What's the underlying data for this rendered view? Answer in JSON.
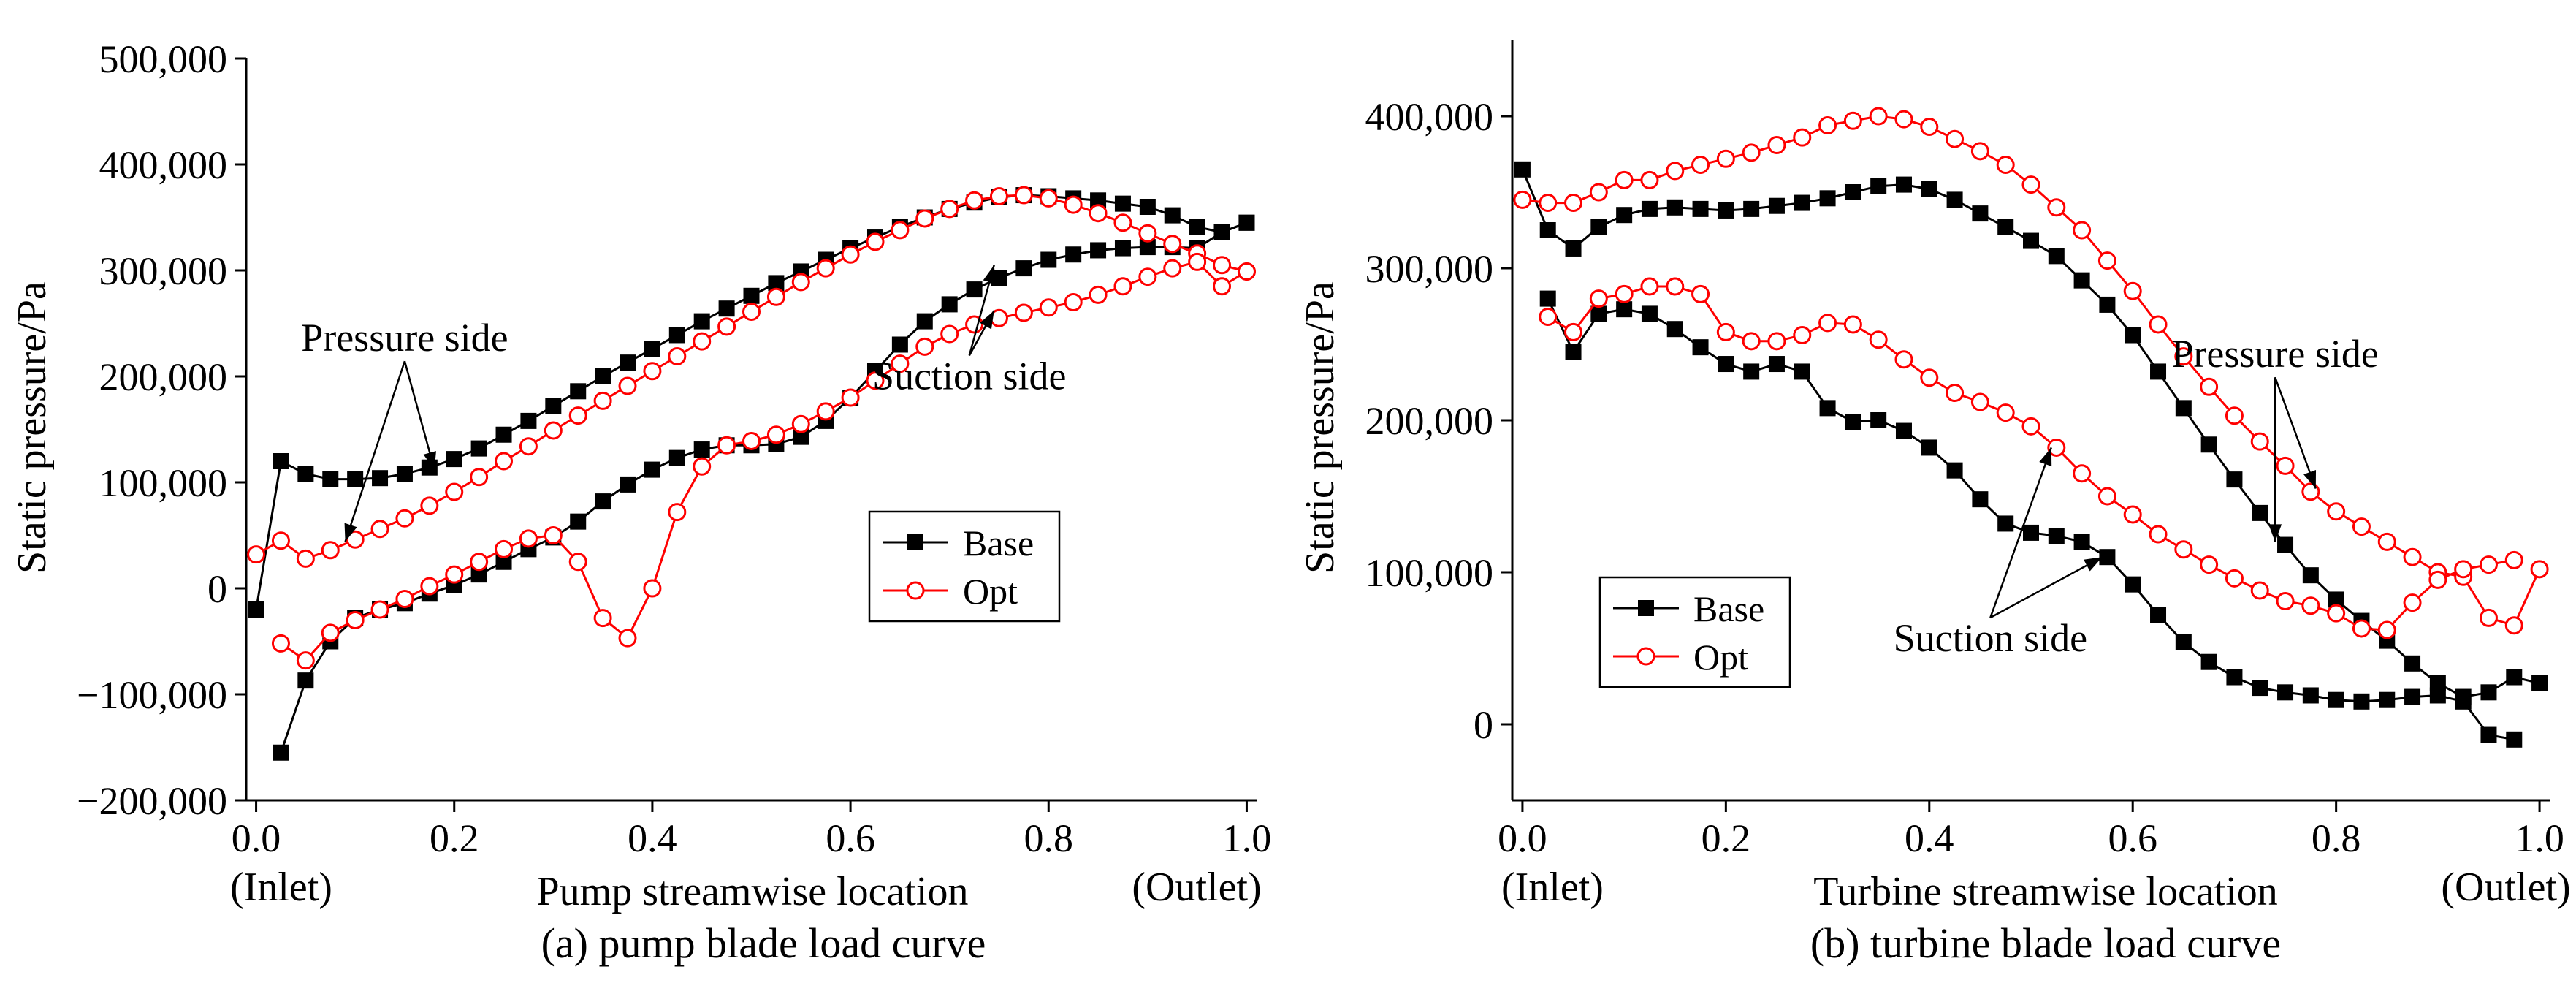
{
  "chart_data": [
    {
      "type": "line",
      "caption": "(a) pump blade load curve",
      "xlabel": "Pump streamwise location",
      "ylabel": "Static pressure/Pa",
      "xlim": [
        -0.01,
        1.01
      ],
      "ylim": [
        -200000,
        500000
      ],
      "xticks": [
        0.0,
        0.2,
        0.4,
        0.6,
        0.8,
        1.0
      ],
      "xtick_labels": [
        "0.0",
        "0.2",
        "0.4",
        "0.6",
        "0.8",
        "1.0"
      ],
      "yticks": [
        -200000,
        -100000,
        0,
        100000,
        200000,
        300000,
        400000,
        500000
      ],
      "ytick_labels": [
        "−200,000",
        "−100,000",
        "0",
        "100,000",
        "200,000",
        "300,000",
        "400,000",
        "500,000"
      ],
      "inlet_label": "(Inlet)",
      "outlet_label": "(Outlet)",
      "legend": {
        "position": "center-right",
        "entries": [
          "Base",
          "Opt"
        ]
      },
      "annotations": [
        {
          "text": "Pressure side",
          "at": [
            0.15,
            224000
          ],
          "targets": [
            [
              0.18,
              112000
            ],
            [
              0.09,
              44000
            ]
          ]
        },
        {
          "text": "Suction side",
          "at": [
            0.72,
            188000
          ],
          "targets": [
            [
              0.745,
              305000
            ],
            [
              0.745,
              262000
            ]
          ]
        }
      ],
      "series": [
        {
          "name": "Base",
          "side": "pressure",
          "color": "#000000",
          "marker": "square",
          "x": [
            0.0,
            0.025,
            0.05,
            0.075,
            0.1,
            0.125,
            0.15,
            0.175,
            0.2,
            0.225,
            0.25,
            0.275,
            0.3,
            0.325,
            0.35,
            0.375,
            0.4,
            0.425,
            0.45,
            0.475,
            0.5,
            0.525,
            0.55,
            0.575,
            0.6,
            0.625,
            0.65,
            0.675,
            0.7,
            0.725,
            0.75,
            0.775,
            0.8,
            0.825,
            0.85,
            0.875,
            0.9,
            0.925,
            0.95,
            0.975,
            1.0
          ],
          "y": [
            -20000,
            120000,
            108000,
            103000,
            103000,
            104000,
            108000,
            114000,
            122000,
            132000,
            145000,
            158000,
            172000,
            186000,
            200000,
            213000,
            226000,
            239000,
            252000,
            264000,
            276000,
            288000,
            299000,
            310000,
            321000,
            331000,
            341000,
            350000,
            358000,
            364000,
            369000,
            371000,
            370000,
            368000,
            366000,
            363000,
            360000,
            352000,
            341000,
            336000,
            345000
          ]
        },
        {
          "name": "Base",
          "side": "suction",
          "color": "#000000",
          "marker": "square",
          "x": [
            0.025,
            0.05,
            0.075,
            0.1,
            0.125,
            0.15,
            0.175,
            0.2,
            0.225,
            0.25,
            0.275,
            0.3,
            0.325,
            0.35,
            0.375,
            0.4,
            0.425,
            0.45,
            0.475,
            0.5,
            0.525,
            0.55,
            0.575,
            0.6,
            0.625,
            0.65,
            0.675,
            0.7,
            0.725,
            0.75,
            0.775,
            0.8,
            0.825,
            0.85,
            0.875,
            0.9,
            0.925,
            0.95,
            0.975,
            1.0
          ],
          "y": [
            -155000,
            -87000,
            -50000,
            -28000,
            -20000,
            -14000,
            -5000,
            3000,
            13000,
            25000,
            37000,
            48000,
            63000,
            82000,
            98000,
            112000,
            123000,
            131000,
            135000,
            135000,
            136000,
            143000,
            158000,
            180000,
            205000,
            230000,
            252000,
            268000,
            282000,
            293000,
            302000,
            310000,
            315000,
            319000,
            321000,
            322000,
            322000,
            321000,
            336000,
            345000
          ]
        },
        {
          "name": "Opt",
          "side": "pressure",
          "color": "#ff0000",
          "marker": "circle",
          "x": [
            0.0,
            0.025,
            0.05,
            0.075,
            0.1,
            0.125,
            0.15,
            0.175,
            0.2,
            0.225,
            0.25,
            0.275,
            0.3,
            0.325,
            0.35,
            0.375,
            0.4,
            0.425,
            0.45,
            0.475,
            0.5,
            0.525,
            0.55,
            0.575,
            0.6,
            0.625,
            0.65,
            0.675,
            0.7,
            0.725,
            0.75,
            0.775,
            0.8,
            0.825,
            0.85,
            0.875,
            0.9,
            0.925,
            0.95,
            0.975,
            1.0
          ],
          "y": [
            32000,
            45000,
            28000,
            36000,
            46000,
            56000,
            66000,
            78000,
            91000,
            105000,
            120000,
            134000,
            149000,
            163000,
            177000,
            191000,
            205000,
            219000,
            233000,
            247000,
            261000,
            275000,
            289000,
            302000,
            315000,
            327000,
            338000,
            349000,
            358000,
            366000,
            370000,
            371000,
            368000,
            362000,
            354000,
            345000,
            335000,
            325000,
            316000,
            305000,
            299000
          ]
        },
        {
          "name": "Opt",
          "side": "suction",
          "color": "#ff0000",
          "marker": "circle",
          "x": [
            0.025,
            0.05,
            0.075,
            0.1,
            0.125,
            0.15,
            0.175,
            0.2,
            0.225,
            0.25,
            0.275,
            0.3,
            0.325,
            0.35,
            0.375,
            0.4,
            0.425,
            0.45,
            0.475,
            0.5,
            0.525,
            0.55,
            0.575,
            0.6,
            0.625,
            0.65,
            0.675,
            0.7,
            0.725,
            0.75,
            0.775,
            0.8,
            0.825,
            0.85,
            0.875,
            0.9,
            0.925,
            0.95,
            0.975,
            1.0
          ],
          "y": [
            -52000,
            -68000,
            -42000,
            -30000,
            -20000,
            -10000,
            2000,
            13000,
            25000,
            37000,
            47000,
            50000,
            25000,
            -28000,
            -47000,
            0,
            72000,
            115000,
            135000,
            139000,
            145000,
            155000,
            167000,
            180000,
            196000,
            212000,
            228000,
            240000,
            249000,
            255000,
            260000,
            265000,
            270000,
            277000,
            285000,
            294000,
            302000,
            308000,
            285000,
            299000
          ]
        }
      ]
    },
    {
      "type": "line",
      "caption": "(b) turbine blade load curve",
      "xlabel": "Turbine streamwise location",
      "ylabel": "Static pressure/Pa",
      "xlim": [
        -0.01,
        1.01
      ],
      "ylim": [
        -50000,
        450000
      ],
      "xticks": [
        0.0,
        0.2,
        0.4,
        0.6,
        0.8,
        1.0
      ],
      "xtick_labels": [
        "0.0",
        "0.2",
        "0.4",
        "0.6",
        "0.8",
        "1.0"
      ],
      "yticks": [
        0,
        100000,
        200000,
        300000,
        400000
      ],
      "ytick_labels": [
        "0",
        "100,000",
        "200,000",
        "300,000",
        "400,000"
      ],
      "inlet_label": "(Inlet)",
      "outlet_label": "(Outlet)",
      "legend": {
        "position": "center-left",
        "entries": [
          "Base",
          "Opt"
        ]
      },
      "annotations": [
        {
          "text": "Pressure side",
          "at": [
            0.74,
            235000
          ],
          "targets": [
            [
              0.74,
              120000
            ],
            [
              0.78,
              155000
            ]
          ]
        },
        {
          "text": "Suction side",
          "at": [
            0.46,
            48000
          ],
          "targets": [
            [
              0.52,
              182000
            ],
            [
              0.57,
              110000
            ]
          ]
        }
      ],
      "series": [
        {
          "name": "Base",
          "side": "pressure",
          "color": "#000000",
          "marker": "square",
          "x": [
            0.0,
            0.025,
            0.05,
            0.075,
            0.1,
            0.125,
            0.15,
            0.175,
            0.2,
            0.225,
            0.25,
            0.275,
            0.3,
            0.325,
            0.35,
            0.375,
            0.4,
            0.425,
            0.45,
            0.475,
            0.5,
            0.525,
            0.55,
            0.575,
            0.6,
            0.625,
            0.65,
            0.675,
            0.7,
            0.725,
            0.75,
            0.775,
            0.8,
            0.825,
            0.85,
            0.875,
            0.9,
            0.925,
            0.95,
            0.975,
            1.0
          ],
          "y": [
            365000,
            325000,
            313000,
            327000,
            335000,
            339000,
            340000,
            339000,
            338000,
            339000,
            341000,
            343000,
            346000,
            350000,
            354000,
            355000,
            352000,
            345000,
            336000,
            327000,
            318000,
            308000,
            292000,
            276000,
            256000,
            232000,
            208000,
            184000,
            161000,
            139000,
            118000,
            98000,
            82000,
            68000,
            55000,
            40000,
            27000,
            18000,
            21000,
            31000,
            27000
          ]
        },
        {
          "name": "Base",
          "side": "suction",
          "color": "#000000",
          "marker": "square",
          "x": [
            0.025,
            0.05,
            0.075,
            0.1,
            0.125,
            0.15,
            0.175,
            0.2,
            0.225,
            0.25,
            0.275,
            0.3,
            0.325,
            0.35,
            0.375,
            0.4,
            0.425,
            0.45,
            0.475,
            0.5,
            0.525,
            0.55,
            0.575,
            0.6,
            0.625,
            0.65,
            0.675,
            0.7,
            0.725,
            0.75,
            0.775,
            0.8,
            0.825,
            0.85,
            0.875,
            0.9,
            0.925,
            0.95,
            0.975
          ],
          "y": [
            280000,
            245000,
            270000,
            273000,
            270000,
            260000,
            248000,
            237000,
            232000,
            237000,
            232000,
            208000,
            199000,
            200000,
            193000,
            182000,
            167000,
            148000,
            132000,
            126000,
            124000,
            120000,
            110000,
            92000,
            72000,
            54000,
            41000,
            31000,
            24000,
            21000,
            19000,
            16000,
            15000,
            16000,
            18000,
            19000,
            15000,
            -7000,
            -10000
          ]
        },
        {
          "name": "Opt",
          "side": "pressure",
          "color": "#ff0000",
          "marker": "circle",
          "x": [
            0.0,
            0.025,
            0.05,
            0.075,
            0.1,
            0.125,
            0.15,
            0.175,
            0.2,
            0.225,
            0.25,
            0.275,
            0.3,
            0.325,
            0.35,
            0.375,
            0.4,
            0.425,
            0.45,
            0.475,
            0.5,
            0.525,
            0.55,
            0.575,
            0.6,
            0.625,
            0.65,
            0.675,
            0.7,
            0.725,
            0.75,
            0.775,
            0.8,
            0.825,
            0.85,
            0.875,
            0.9,
            0.925,
            0.95,
            0.975,
            1.0
          ],
          "y": [
            345000,
            343000,
            343000,
            350000,
            358000,
            358000,
            364000,
            368000,
            372000,
            376000,
            381000,
            386000,
            394000,
            397000,
            400000,
            398000,
            393000,
            385000,
            377000,
            368000,
            355000,
            340000,
            325000,
            305000,
            285000,
            263000,
            242000,
            222000,
            203000,
            186000,
            170000,
            153000,
            140000,
            130000,
            120000,
            110000,
            100000,
            97000,
            70000,
            65000,
            102000
          ]
        },
        {
          "name": "Opt",
          "side": "suction",
          "color": "#ff0000",
          "marker": "circle",
          "x": [
            0.025,
            0.05,
            0.075,
            0.1,
            0.125,
            0.15,
            0.175,
            0.2,
            0.225,
            0.25,
            0.275,
            0.3,
            0.325,
            0.35,
            0.375,
            0.4,
            0.425,
            0.45,
            0.475,
            0.5,
            0.525,
            0.55,
            0.575,
            0.6,
            0.625,
            0.65,
            0.675,
            0.7,
            0.725,
            0.75,
            0.775,
            0.8,
            0.825,
            0.85,
            0.875,
            0.9,
            0.925,
            0.95,
            0.975
          ],
          "y": [
            268000,
            258000,
            280000,
            283000,
            288000,
            288000,
            283000,
            258000,
            252000,
            252000,
            256000,
            264000,
            263000,
            253000,
            240000,
            228000,
            218000,
            212000,
            205000,
            196000,
            182000,
            165000,
            150000,
            138000,
            125000,
            115000,
            105000,
            96000,
            88000,
            81000,
            78000,
            73000,
            63000,
            62000,
            80000,
            95000,
            102000,
            105000,
            108000
          ]
        }
      ]
    }
  ]
}
